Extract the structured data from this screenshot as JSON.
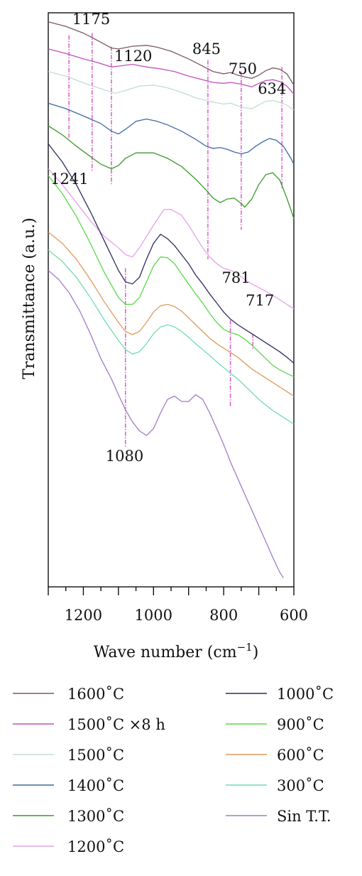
{
  "chart_data": {
    "type": "line",
    "title": "",
    "xlabel": "Wave number (cm",
    "xlabel_sup": "−1",
    "xlabel_end": ")",
    "ylabel": "Transmittance (a.u.)",
    "xlim": [
      1300,
      600
    ],
    "x_ticks": [
      1200,
      1000,
      800,
      600
    ],
    "y_ticks_shown": false,
    "grid": false,
    "legend_position": "below",
    "annotations": [
      {
        "label": "1175",
        "x": 1175,
        "color": "#d84fc6"
      },
      {
        "label": "1120",
        "x": 1120,
        "color": "#d84fc6"
      },
      {
        "label": "845",
        "x": 845,
        "color": "#d84fc6"
      },
      {
        "label": "750",
        "x": 750,
        "color": "#d84fc6"
      },
      {
        "label": "634",
        "x": 634,
        "color": "#d84fc6"
      },
      {
        "label": "1241",
        "x": 1241,
        "color": "#d84fc6"
      },
      {
        "label": "781",
        "x": 781,
        "color": "#d84fc6"
      },
      {
        "label": "717",
        "x": 717,
        "color": "#d84fc6"
      },
      {
        "label": "1080",
        "x": 1080,
        "color": "#d84fc6"
      }
    ],
    "series": [
      {
        "name": "1600˚C",
        "color": "#7a5868",
        "x": [
          1300,
          1250,
          1200,
          1175,
          1150,
          1120,
          1100,
          1060,
          1020,
          990,
          950,
          900,
          860,
          830,
          800,
          780,
          760,
          740,
          720,
          700,
          680,
          660,
          640,
          620,
          600
        ],
        "y": [
          9.2,
          9.1,
          8.95,
          8.85,
          8.75,
          8.62,
          8.6,
          8.66,
          8.68,
          8.64,
          8.55,
          8.38,
          8.22,
          8.1,
          8.05,
          8.08,
          8.02,
          7.98,
          7.95,
          8.02,
          8.12,
          8.18,
          8.15,
          8.05,
          7.8
        ]
      },
      {
        "name": "1500˚C ×8 h",
        "color": "#c050c0",
        "x": [
          1300,
          1250,
          1200,
          1160,
          1120,
          1100,
          1060,
          1020,
          980,
          940,
          900,
          860,
          830,
          800,
          780,
          750,
          720,
          700,
          680,
          660,
          640,
          620,
          600
        ],
        "y": [
          8.6,
          8.5,
          8.38,
          8.3,
          8.2,
          8.22,
          8.26,
          8.2,
          8.16,
          8.1,
          8.0,
          7.92,
          7.86,
          7.84,
          7.86,
          7.82,
          7.76,
          7.84,
          7.9,
          7.92,
          7.88,
          7.78,
          7.6
        ]
      },
      {
        "name": "1500˚C",
        "color": "#c4dcd6",
        "x": [
          1300,
          1250,
          1200,
          1150,
          1110,
          1080,
          1040,
          1000,
          960,
          920,
          880,
          840,
          800,
          780,
          760,
          740,
          720,
          700,
          680,
          660,
          640,
          620,
          600
        ],
        "y": [
          8.1,
          8.0,
          7.85,
          7.72,
          7.62,
          7.68,
          7.78,
          7.8,
          7.74,
          7.64,
          7.52,
          7.44,
          7.38,
          7.4,
          7.34,
          7.3,
          7.28,
          7.36,
          7.44,
          7.46,
          7.42,
          7.36,
          7.25
        ]
      },
      {
        "name": "1400˚C",
        "color": "#3c6aa4",
        "x": [
          1300,
          1250,
          1200,
          1150,
          1120,
          1100,
          1080,
          1050,
          1020,
          990,
          960,
          920,
          880,
          850,
          830,
          810,
          790,
          770,
          750,
          730,
          710,
          690,
          670,
          650,
          630,
          610,
          600
        ],
        "y": [
          7.4,
          7.28,
          7.12,
          6.95,
          6.78,
          6.72,
          6.82,
          7.0,
          7.05,
          7.0,
          6.92,
          6.78,
          6.6,
          6.45,
          6.4,
          6.42,
          6.38,
          6.32,
          6.28,
          6.32,
          6.44,
          6.54,
          6.62,
          6.58,
          6.45,
          6.2,
          6.05
        ]
      },
      {
        "name": "1300˚C",
        "color": "#3a9a2a",
        "x": [
          1300,
          1260,
          1220,
          1180,
          1150,
          1120,
          1100,
          1080,
          1050,
          1000,
          960,
          920,
          880,
          850,
          830,
          810,
          790,
          770,
          750,
          740,
          720,
          700,
          680,
          660,
          640,
          620,
          600
        ],
        "y": [
          6.9,
          6.7,
          6.45,
          6.22,
          6.05,
          5.95,
          6.02,
          6.18,
          6.3,
          6.3,
          6.18,
          6.0,
          5.72,
          5.48,
          5.3,
          5.2,
          5.28,
          5.3,
          5.18,
          5.1,
          5.28,
          5.6,
          5.82,
          5.86,
          5.7,
          5.3,
          4.85
        ]
      },
      {
        "name": "1200˚C",
        "color": "#e8a0ec",
        "x": [
          1300,
          1260,
          1220,
          1180,
          1140,
          1100,
          1080,
          1060,
          1040,
          1000,
          970,
          950,
          920,
          900,
          880,
          860,
          840,
          820,
          800,
          780,
          760,
          740,
          720,
          700,
          680,
          660,
          640,
          620,
          600
        ],
        "y": [
          5.95,
          5.6,
          5.2,
          4.8,
          4.45,
          4.2,
          4.05,
          4.0,
          4.2,
          4.7,
          5.05,
          5.05,
          4.92,
          4.7,
          4.45,
          4.2,
          4.0,
          3.85,
          3.75,
          3.7,
          3.62,
          3.5,
          3.4,
          3.32,
          3.24,
          3.15,
          3.05,
          2.95,
          2.85
        ]
      },
      {
        "name": "1000˚C",
        "color": "#2f2a66",
        "x": [
          1300,
          1260,
          1220,
          1180,
          1140,
          1100,
          1080,
          1060,
          1040,
          1020,
          1000,
          980,
          960,
          940,
          920,
          900,
          880,
          860,
          840,
          820,
          800,
          780,
          760,
          740,
          720,
          700,
          680,
          660,
          640,
          620,
          600
        ],
        "y": [
          6.5,
          6.1,
          5.6,
          5.0,
          4.35,
          3.7,
          3.45,
          3.4,
          3.55,
          3.95,
          4.3,
          4.5,
          4.4,
          4.25,
          4.05,
          3.85,
          3.6,
          3.4,
          3.18,
          2.98,
          2.78,
          2.62,
          2.5,
          2.4,
          2.3,
          2.2,
          2.1,
          2.0,
          1.9,
          1.78,
          1.65
        ]
      },
      {
        "name": "900˚C",
        "color": "#5ad84a",
        "x": [
          1300,
          1260,
          1220,
          1180,
          1140,
          1100,
          1080,
          1060,
          1040,
          1020,
          1000,
          980,
          960,
          940,
          920,
          900,
          880,
          860,
          840,
          820,
          800,
          780,
          760,
          740,
          720,
          700,
          680,
          660,
          640,
          620,
          600
        ],
        "y": [
          5.8,
          5.4,
          4.9,
          4.3,
          3.65,
          3.1,
          2.95,
          2.95,
          3.1,
          3.45,
          3.8,
          4.0,
          3.98,
          3.85,
          3.62,
          3.4,
          3.18,
          2.98,
          2.75,
          2.55,
          2.4,
          2.32,
          2.28,
          2.18,
          2.05,
          1.9,
          1.75,
          1.6,
          1.5,
          1.42,
          1.35
        ]
      },
      {
        "name": "600˚C",
        "color": "#e09a5c",
        "x": [
          1300,
          1260,
          1220,
          1180,
          1140,
          1100,
          1080,
          1060,
          1040,
          1020,
          1000,
          980,
          960,
          940,
          920,
          900,
          880,
          860,
          840,
          820,
          800,
          780,
          760,
          740,
          720,
          700,
          680,
          660,
          640,
          620,
          600
        ],
        "y": [
          4.55,
          4.3,
          3.95,
          3.5,
          3.0,
          2.55,
          2.35,
          2.28,
          2.35,
          2.55,
          2.78,
          2.92,
          2.95,
          2.9,
          2.8,
          2.65,
          2.5,
          2.35,
          2.2,
          2.08,
          1.98,
          1.88,
          1.78,
          1.65,
          1.52,
          1.42,
          1.32,
          1.22,
          1.12,
          1.02,
          0.92
        ]
      },
      {
        "name": "300˚C",
        "color": "#72dcb0",
        "x": [
          1300,
          1260,
          1220,
          1180,
          1140,
          1100,
          1080,
          1060,
          1040,
          1020,
          1000,
          980,
          960,
          940,
          920,
          900,
          880,
          860,
          840,
          820,
          800,
          780,
          760,
          740,
          720,
          700,
          680,
          660,
          640,
          620,
          600
        ],
        "y": [
          4.15,
          3.9,
          3.55,
          3.1,
          2.6,
          2.15,
          1.95,
          1.85,
          1.9,
          2.08,
          2.3,
          2.45,
          2.5,
          2.45,
          2.35,
          2.22,
          2.08,
          1.95,
          1.82,
          1.68,
          1.55,
          1.42,
          1.3,
          1.15,
          1.0,
          0.85,
          0.72,
          0.6,
          0.5,
          0.4,
          0.3
        ]
      },
      {
        "name": "Sin T.T.",
        "color": "#a27ac8",
        "x": [
          1300,
          1270,
          1240,
          1210,
          1180,
          1150,
          1120,
          1100,
          1080,
          1060,
          1040,
          1020,
          1000,
          980,
          960,
          940,
          920,
          900,
          880,
          860,
          840,
          820,
          800,
          780,
          760,
          740,
          720,
          700,
          680,
          660,
          640,
          630
        ],
        "y": [
          3.7,
          3.5,
          3.2,
          2.8,
          2.3,
          1.75,
          1.3,
          0.95,
          0.62,
          0.35,
          0.15,
          0.05,
          0.2,
          0.55,
          0.85,
          0.92,
          0.8,
          0.8,
          0.95,
          0.85,
          0.55,
          0.2,
          -0.15,
          -0.55,
          -0.9,
          -1.25,
          -1.6,
          -1.95,
          -2.3,
          -2.65,
          -2.98,
          -3.1
        ]
      }
    ]
  }
}
